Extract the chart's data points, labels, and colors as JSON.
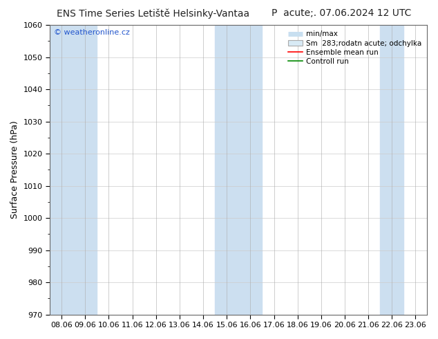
{
  "title_left": "ENS Time Series Letiště Helsinky-Vantaa",
  "title_right": "P  acute;. 07.06.2024 12 UTC",
  "ylabel": "Surface Pressure (hPa)",
  "ylim": [
    970,
    1060
  ],
  "yticks": [
    970,
    980,
    990,
    1000,
    1010,
    1020,
    1030,
    1040,
    1050,
    1060
  ],
  "xlabels": [
    "08.06",
    "09.06",
    "10.06",
    "11.06",
    "12.06",
    "13.06",
    "14.06",
    "15.06",
    "16.06",
    "17.06",
    "18.06",
    "19.06",
    "20.06",
    "21.06",
    "22.06",
    "23.06"
  ],
  "background_color": "#ffffff",
  "plot_bg_color": "#ffffff",
  "band_color_dark": "#ccdff0",
  "band_color_light": "#deeef8",
  "legend_entries": [
    "min/max",
    "Sm  283;rodatn acute; odchylka",
    "Ensemble mean run",
    "Controll run"
  ],
  "minmax_color": "#c8dff0",
  "std_color": "#d8eaf5",
  "ensemble_color": "#ff0000",
  "control_color": "#008800",
  "watermark": "© weatheronline.cz",
  "watermark_color": "#2255cc",
  "title_fontsize": 10,
  "axis_fontsize": 9,
  "tick_fontsize": 8,
  "legend_fontsize": 7.5,
  "shaded_positions": [
    0,
    1,
    7,
    8,
    14
  ]
}
